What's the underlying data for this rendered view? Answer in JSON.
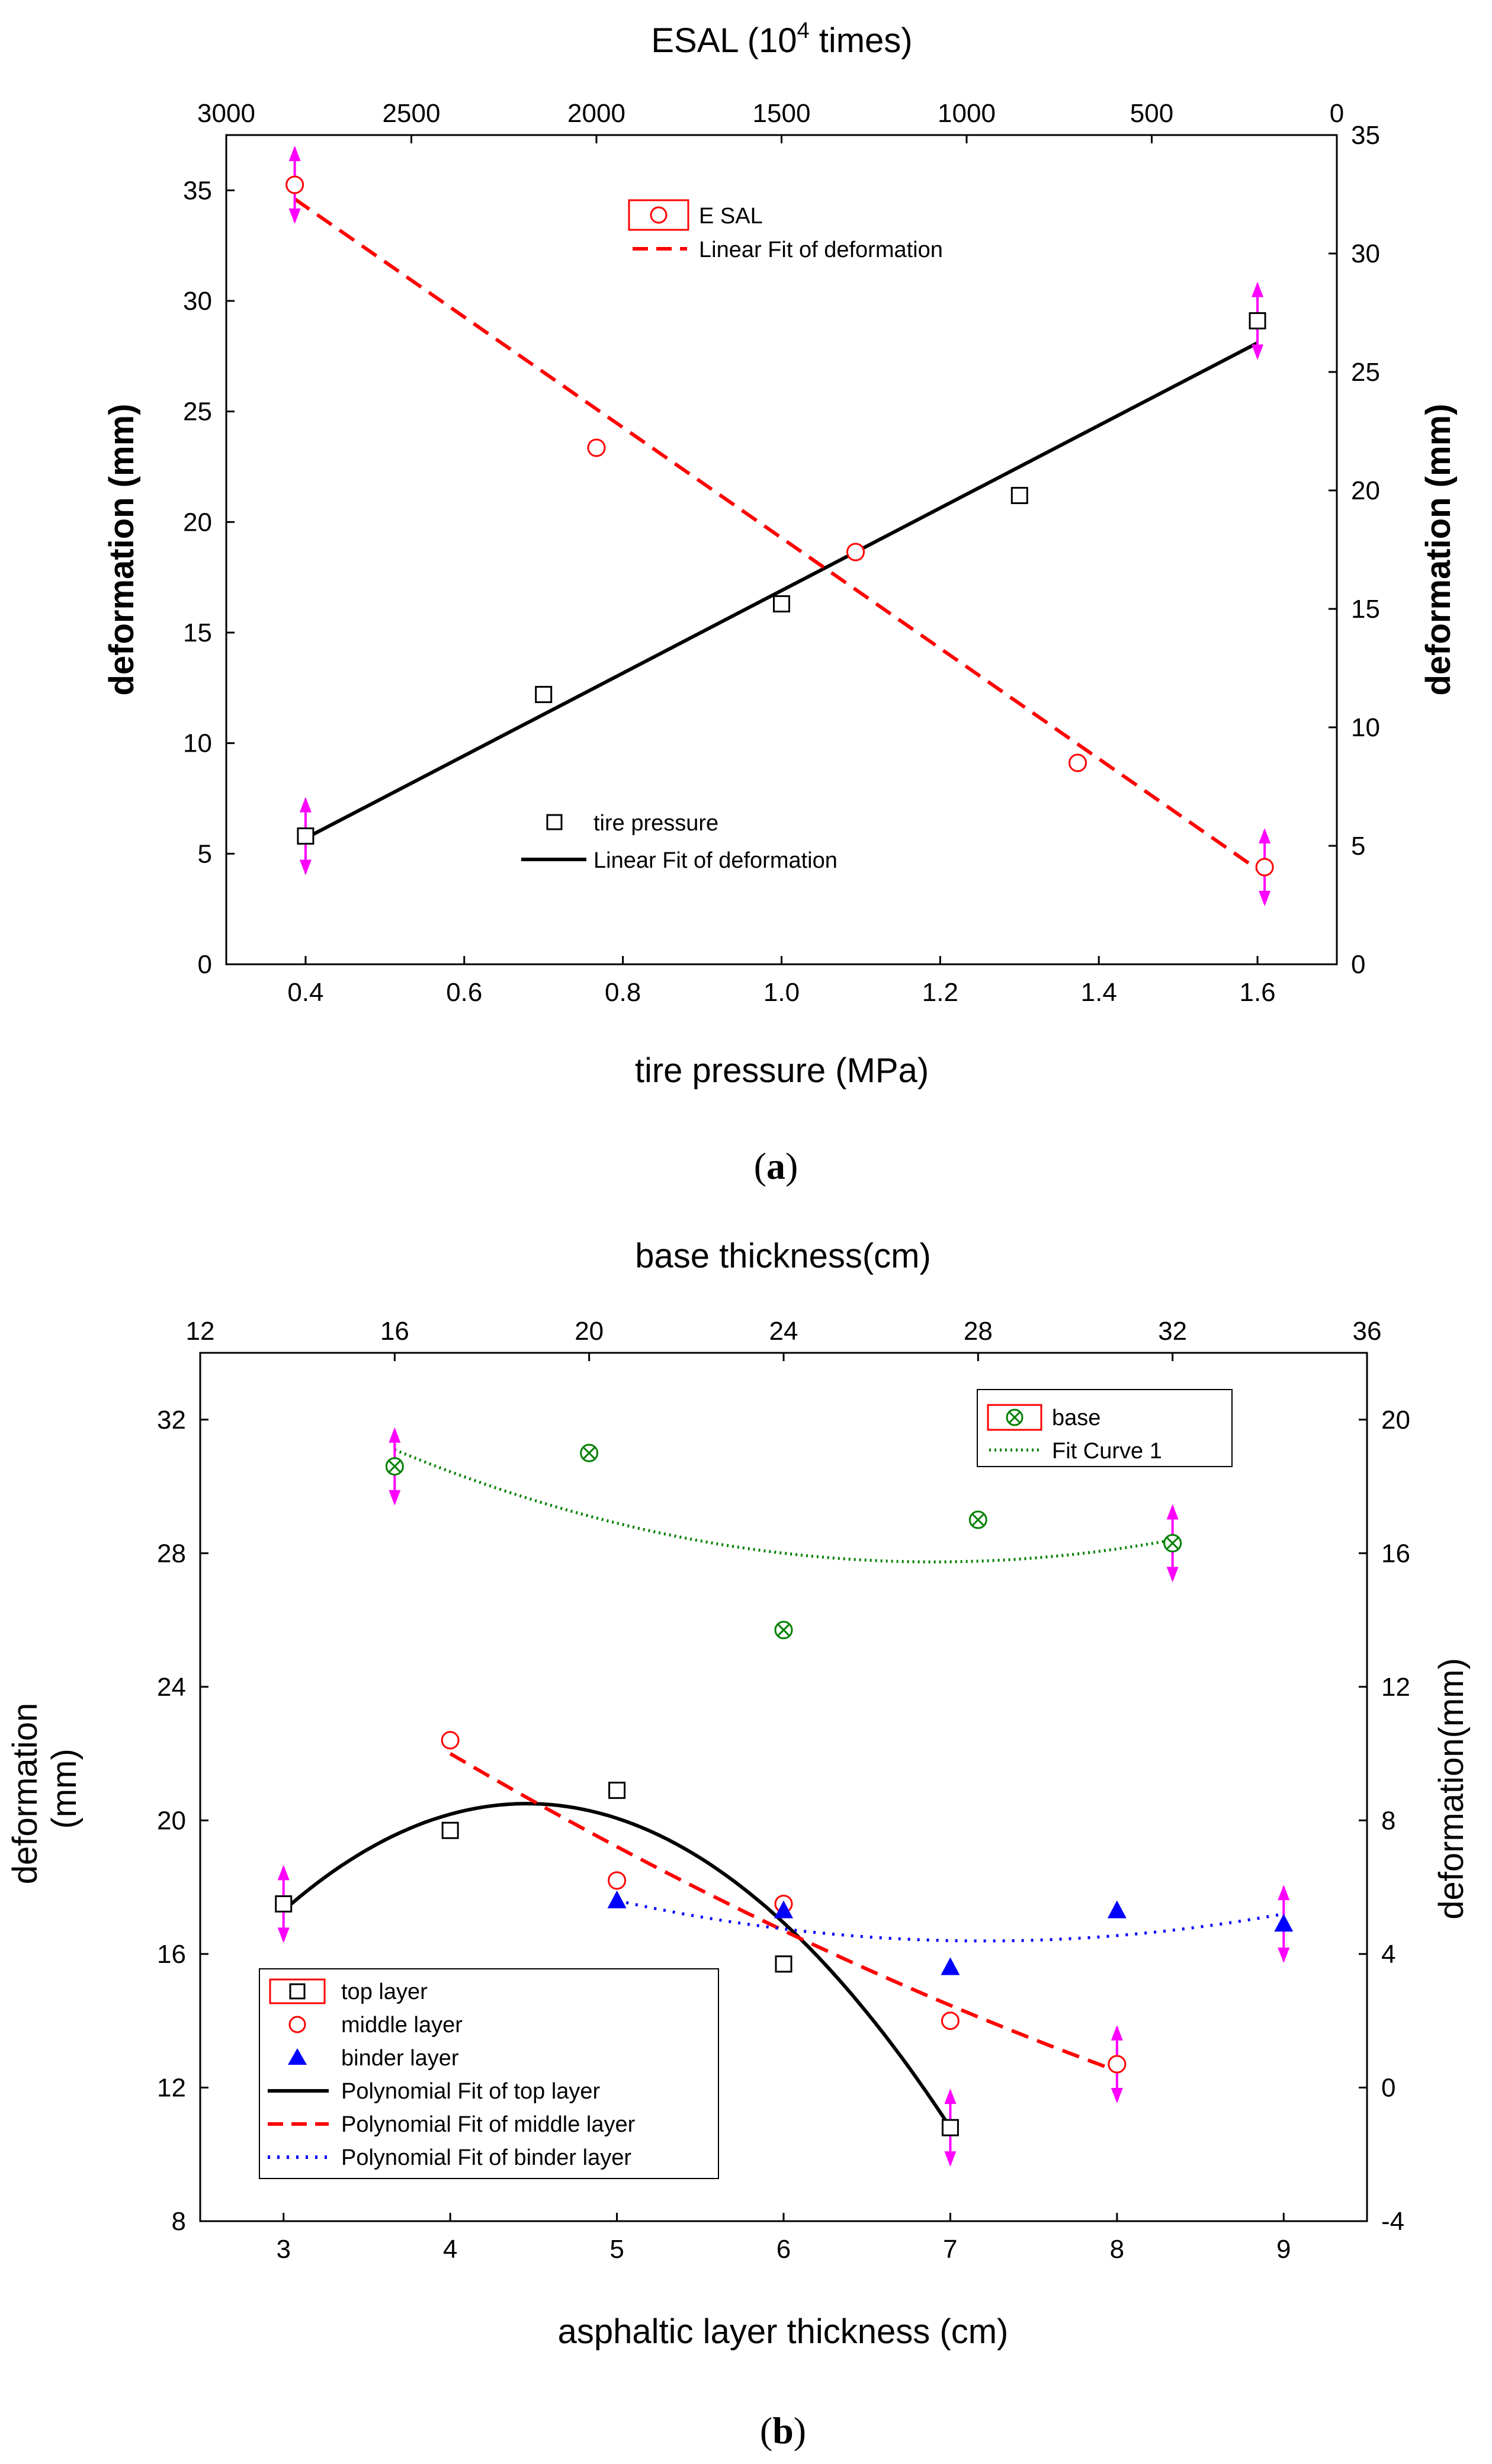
{
  "figure": {
    "caption_a": {
      "open": "(",
      "letter": "a",
      "close": ")"
    },
    "caption_b": {
      "open": "(",
      "letter": "b",
      "close": ")"
    }
  },
  "colors": {
    "black": "#000000",
    "red": "#ff0000",
    "blue": "#0000ff",
    "green": "#008000",
    "magenta": "#ff00ff"
  },
  "chart_data": [
    {
      "type": "line",
      "panel": "a",
      "xlabel": "tire pressure (MPa)",
      "ylabel_left": "deformation (mm)",
      "ylabel_right": "deformation (mm)",
      "top_xlabel": {
        "prefix": "ESAL (10",
        "sup": "4",
        "suffix": " times)"
      },
      "xlim": [
        0.3,
        1.7
      ],
      "ylim_left": [
        0,
        37.5
      ],
      "xticks": [
        0.4,
        0.6,
        0.8,
        1.0,
        1.2,
        1.4,
        1.6
      ],
      "xtick_labels": [
        "0.4",
        "0.6",
        "0.8",
        "1.0",
        "1.2",
        "1.4",
        "1.6"
      ],
      "yticks_left": [
        0,
        5,
        10,
        15,
        20,
        25,
        30,
        35
      ],
      "yticks_left_labels": [
        "0",
        "5",
        "10",
        "15",
        "20",
        "25",
        "30",
        "35"
      ],
      "top_xlim": [
        3000,
        0
      ],
      "top_xticks": [
        3000,
        2500,
        2000,
        1500,
        1000,
        500,
        0
      ],
      "top_xtick_labels": [
        "3000",
        "2500",
        "2000",
        "1500",
        "1000",
        "500",
        "0"
      ],
      "right_ylim": [
        0,
        35
      ],
      "right_yticks": [
        0,
        5,
        10,
        15,
        20,
        25,
        30,
        35
      ],
      "right_ytick_labels": [
        "0",
        "5",
        "10",
        "15",
        "20",
        "25",
        "30",
        "35"
      ],
      "series": [
        {
          "name": "tire pressure",
          "axis": "bottom-left",
          "marker": "square",
          "color": "#000000",
          "x": [
            0.4,
            0.7,
            1.0,
            1.3,
            1.6
          ],
          "y": [
            5.8,
            12.2,
            16.3,
            21.2,
            29.1
          ],
          "fit": {
            "name": "Linear Fit of deformation",
            "style": "solid",
            "color": "#000000",
            "x": [
              0.4,
              1.6
            ],
            "y": [
              5.7,
              28.1
            ]
          }
        },
        {
          "name": "ESAL",
          "axis": "top-right",
          "marker": "circle",
          "color": "#ff0000",
          "x": [
            2815,
            2000,
            1300,
            700,
            195
          ],
          "y": [
            32.9,
            21.8,
            17.4,
            8.5,
            4.1
          ],
          "fit": {
            "name": "Linear Fit of deformation",
            "style": "dashed",
            "color": "#ff0000",
            "x": [
              2815,
              195
            ],
            "y": [
              32.3,
              3.8
            ]
          }
        }
      ],
      "error_bars": [
        {
          "axis": "bottom-left",
          "x": 0.4,
          "y": 5.8
        },
        {
          "axis": "bottom-left",
          "x": 1.6,
          "y": 29.1
        },
        {
          "axis": "top-right",
          "x": 2815,
          "y": 32.9
        },
        {
          "axis": "top-right",
          "x": 195,
          "y": 4.1
        }
      ],
      "legends": [
        {
          "position": "upper-center",
          "entries": [
            {
              "label": "E SAL",
              "marker": "circle",
              "color": "#ff0000"
            },
            {
              "label": "Linear Fit of deformation",
              "line": "dashed",
              "color": "#ff0000"
            }
          ]
        },
        {
          "position": "lower-center",
          "entries": [
            {
              "label": "tire pressure",
              "marker": "square",
              "color": "#000000"
            },
            {
              "label": "Linear Fit of deformation",
              "line": "solid",
              "color": "#000000"
            }
          ]
        }
      ]
    },
    {
      "type": "scatter",
      "panel": "b",
      "xlabel": "asphaltic layer thickness (cm)",
      "ylabel_left": [
        "deformation",
        "(mm)"
      ],
      "ylabel_right": "deformation(mm)",
      "top_xlabel": {
        "prefix": "base thickness(cm)",
        "sup": "",
        "suffix": ""
      },
      "xlim": [
        2.5,
        9.5
      ],
      "ylim_left": [
        8,
        34
      ],
      "xticks": [
        3,
        4,
        5,
        6,
        7,
        8,
        9
      ],
      "xtick_labels": [
        "3",
        "4",
        "5",
        "6",
        "7",
        "8",
        "9"
      ],
      "yticks_left": [
        8,
        12,
        16,
        20,
        24,
        28,
        32
      ],
      "yticks_left_labels": [
        "8",
        "12",
        "16",
        "20",
        "24",
        "28",
        "32"
      ],
      "top_xlim": [
        12,
        36
      ],
      "top_xticks": [
        12,
        16,
        20,
        24,
        28,
        32,
        36
      ],
      "top_xtick_labels": [
        "12",
        "16",
        "20",
        "24",
        "28",
        "32",
        "36"
      ],
      "right_ylim": [
        -4,
        22
      ],
      "right_yticks": [
        -4,
        0,
        4,
        8,
        12,
        16,
        20
      ],
      "right_ytick_labels": [
        "-4",
        "0",
        "4",
        "8",
        "12",
        "16",
        "20"
      ],
      "series": [
        {
          "name": "top layer",
          "axis": "bottom-left",
          "marker": "square",
          "color": "#000000",
          "x": [
            3,
            4,
            5,
            6,
            7
          ],
          "y": [
            17.5,
            19.7,
            20.9,
            15.7,
            10.8
          ],
          "fit": {
            "name": "Polynomial Fit of top layer",
            "style": "solid",
            "color": "#000000",
            "kind": "quadratic",
            "x": [
              3,
              4.5,
              7
            ],
            "y": [
              17.3,
              20.5,
              10.8
            ]
          }
        },
        {
          "name": "middle layer",
          "axis": "bottom-left",
          "marker": "circle",
          "color": "#ff0000",
          "x": [
            4,
            5,
            6,
            7,
            8
          ],
          "y": [
            22.4,
            18.2,
            17.5,
            14.0,
            12.7
          ],
          "fit": {
            "name": "Polynomial Fit of middle layer",
            "style": "dashed",
            "color": "#ff0000",
            "kind": "quadratic",
            "x": [
              4,
              6,
              8
            ],
            "y": [
              22.0,
              16.7,
              12.5
            ]
          }
        },
        {
          "name": "binder layer",
          "axis": "bottom-left",
          "marker": "triangle",
          "color": "#0000ff",
          "x": [
            5,
            6,
            7,
            8,
            9
          ],
          "y": [
            17.6,
            17.3,
            15.6,
            17.3,
            16.9
          ],
          "fit": {
            "name": "Polynomial Fit of binder layer",
            "style": "dotted",
            "color": "#0000ff",
            "kind": "quadratic",
            "x": [
              5,
              7,
              9
            ],
            "y": [
              17.6,
              16.4,
              17.2
            ]
          }
        },
        {
          "name": "base",
          "axis": "top-right",
          "marker": "circle-x",
          "color": "#008000",
          "x": [
            16,
            20,
            24,
            28,
            32
          ],
          "y": [
            18.6,
            19.0,
            13.7,
            17.0,
            16.3
          ],
          "fit": {
            "name": "Fit Curve 1",
            "style": "dotted",
            "color": "#008000",
            "kind": "quadratic",
            "x": [
              16,
              24,
              32
            ],
            "y": [
              19.1,
              16.0,
              16.4
            ]
          }
        }
      ],
      "error_bars": [
        {
          "axis": "bottom-left",
          "x": 3,
          "y": 17.5
        },
        {
          "axis": "bottom-left",
          "x": 7,
          "y": 10.8
        },
        {
          "axis": "bottom-left",
          "x": 8,
          "y": 12.7
        },
        {
          "axis": "bottom-left",
          "x": 9,
          "y": 16.9
        },
        {
          "axis": "top-right",
          "x": 16,
          "y": 18.6
        },
        {
          "axis": "top-right",
          "x": 32,
          "y": 16.3
        }
      ],
      "legends": [
        {
          "position": "top-right",
          "entries": [
            {
              "label": "base",
              "marker": "circle-x",
              "color": "#008000"
            },
            {
              "label": "Fit Curve 1",
              "line": "dotted",
              "color": "#008000"
            }
          ]
        },
        {
          "position": "lower-left",
          "entries": [
            {
              "label": "top layer",
              "marker": "square",
              "color": "#000000"
            },
            {
              "label": "middle layer",
              "marker": "circle",
              "color": "#ff0000"
            },
            {
              "label": "binder layer",
              "marker": "triangle",
              "color": "#0000ff"
            },
            {
              "label": "Polynomial Fit of top layer",
              "line": "solid",
              "color": "#000000"
            },
            {
              "label": "Polynomial Fit of middle layer",
              "line": "dashed",
              "color": "#ff0000"
            },
            {
              "label": "Polynomial Fit of binder layer",
              "line": "dotted",
              "color": "#0000ff"
            }
          ]
        }
      ]
    }
  ]
}
